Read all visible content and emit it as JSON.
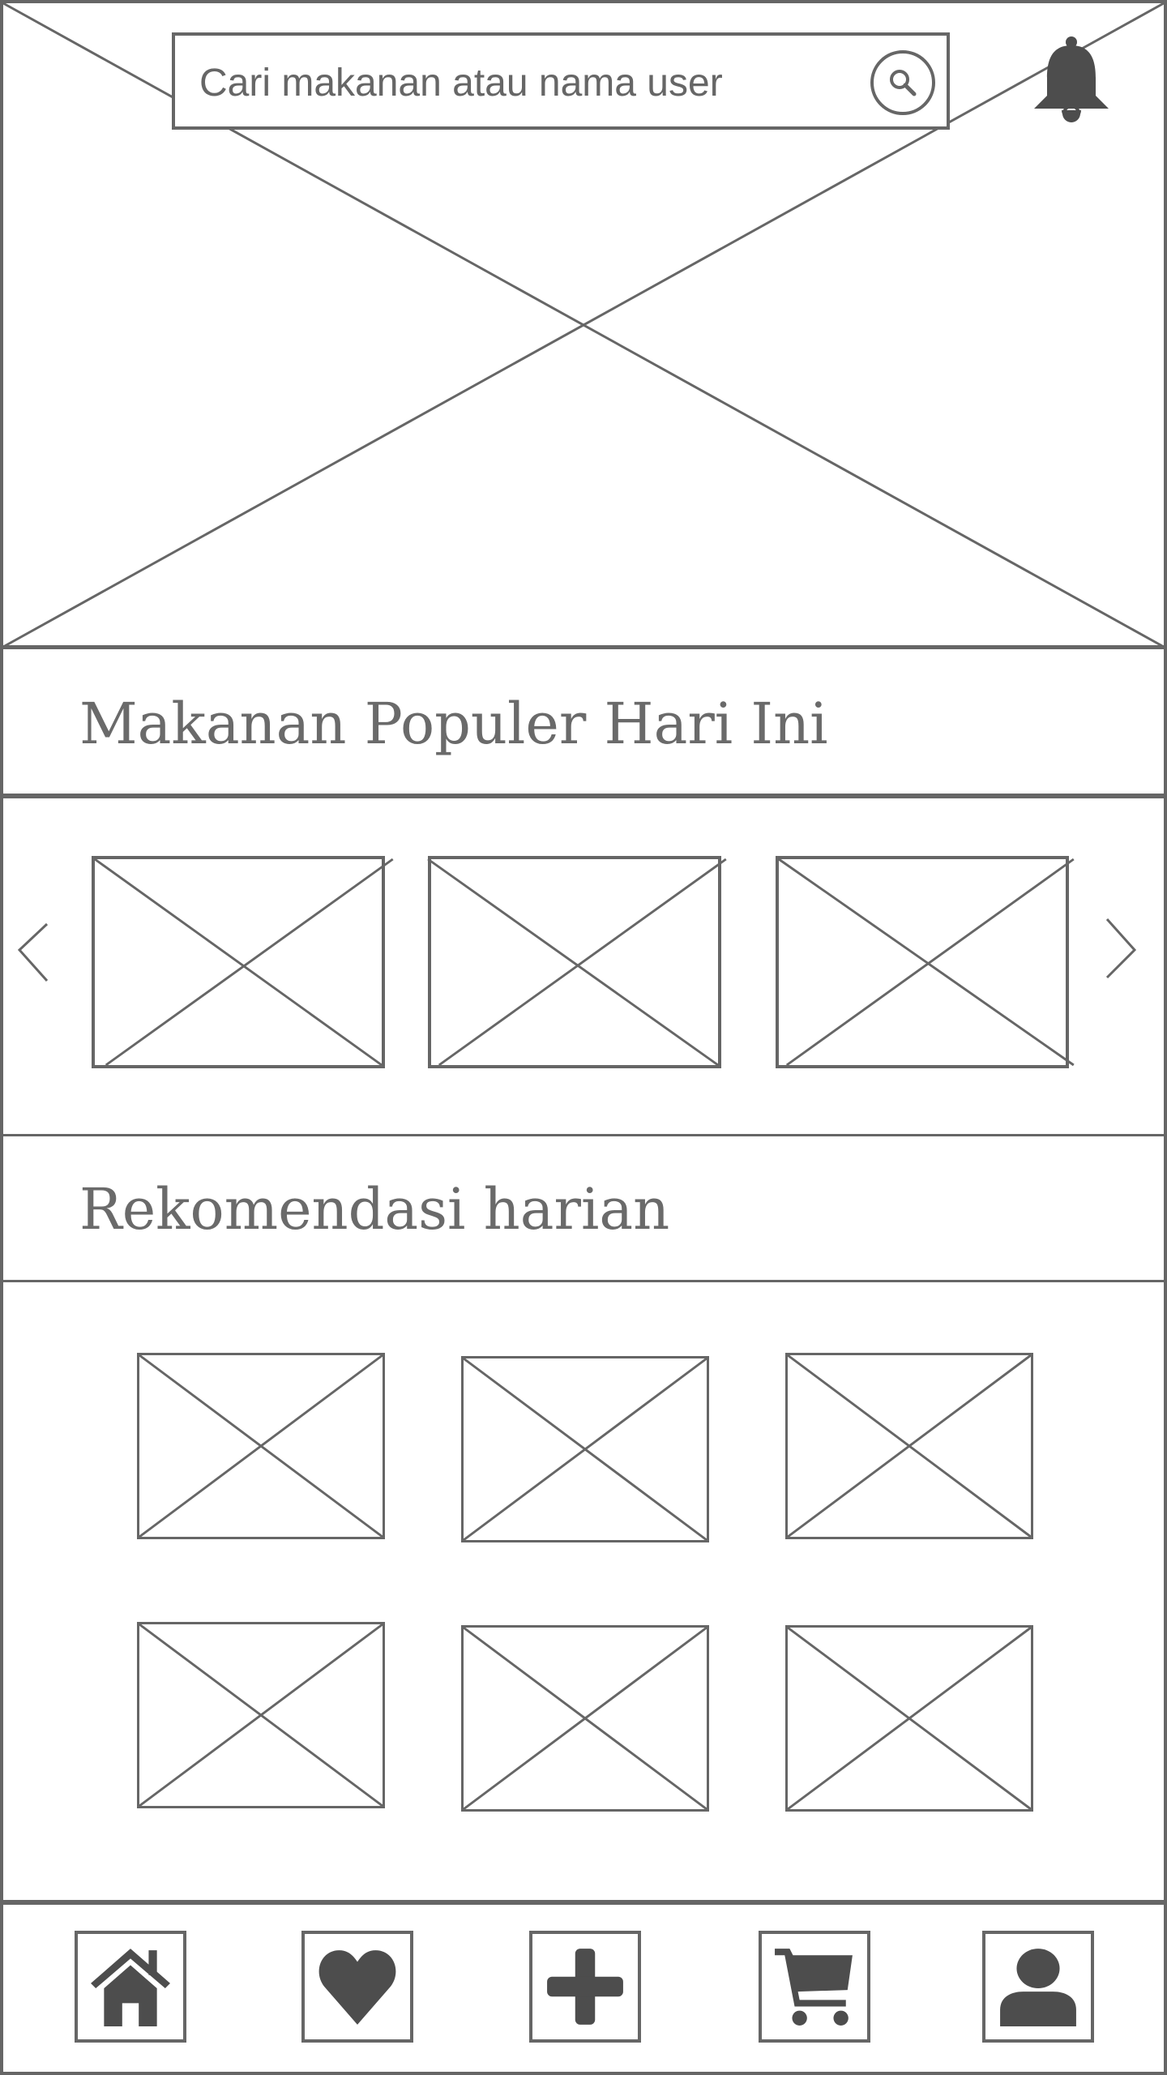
{
  "header": {
    "search_placeholder": "Cari makanan atau nama user",
    "search_icon": "search-icon",
    "notification_icon": "bell-icon"
  },
  "popular": {
    "title": "Makanan Populer Hari Ini",
    "prev_icon": "chevron-left-icon",
    "next_icon": "chevron-right-icon",
    "item_count": 3
  },
  "recommendation": {
    "title": "Rekomendasi harian",
    "item_count": 6
  },
  "bottom_nav": {
    "items": [
      {
        "icon": "home-icon"
      },
      {
        "icon": "heart-icon"
      },
      {
        "icon": "plus-icon"
      },
      {
        "icon": "cart-icon"
      },
      {
        "icon": "user-icon"
      }
    ]
  },
  "colors": {
    "line": "#666666",
    "icon_fill": "#4d4d4d",
    "background": "#ffffff"
  }
}
